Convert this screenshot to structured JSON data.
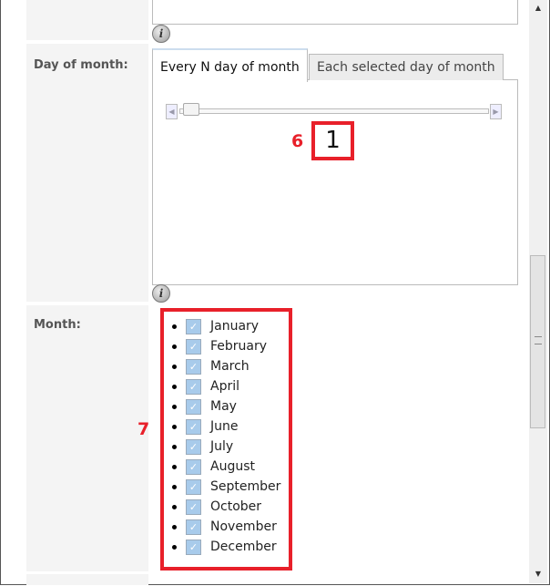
{
  "day_of_month": {
    "label": "Day of month:",
    "tabs": [
      {
        "label": "Every N day of month",
        "active": true
      },
      {
        "label": "Each selected day of month",
        "active": false
      }
    ],
    "slider_value": "1",
    "slider_fraction": 0.0
  },
  "month": {
    "label": "Month:",
    "items": [
      {
        "label": "January",
        "checked": true
      },
      {
        "label": "February",
        "checked": true
      },
      {
        "label": "March",
        "checked": true
      },
      {
        "label": "April",
        "checked": true
      },
      {
        "label": "May",
        "checked": true
      },
      {
        "label": "June",
        "checked": true
      },
      {
        "label": "July",
        "checked": true
      },
      {
        "label": "August",
        "checked": true
      },
      {
        "label": "September",
        "checked": true
      },
      {
        "label": "October",
        "checked": true
      },
      {
        "label": "November",
        "checked": true
      },
      {
        "label": "December",
        "checked": true
      }
    ]
  },
  "annotations": {
    "six": "6",
    "seven": "7"
  },
  "info_glyph": "i",
  "colors": {
    "annotation": "#e8202a",
    "checkbox": "#a8cbeb"
  }
}
